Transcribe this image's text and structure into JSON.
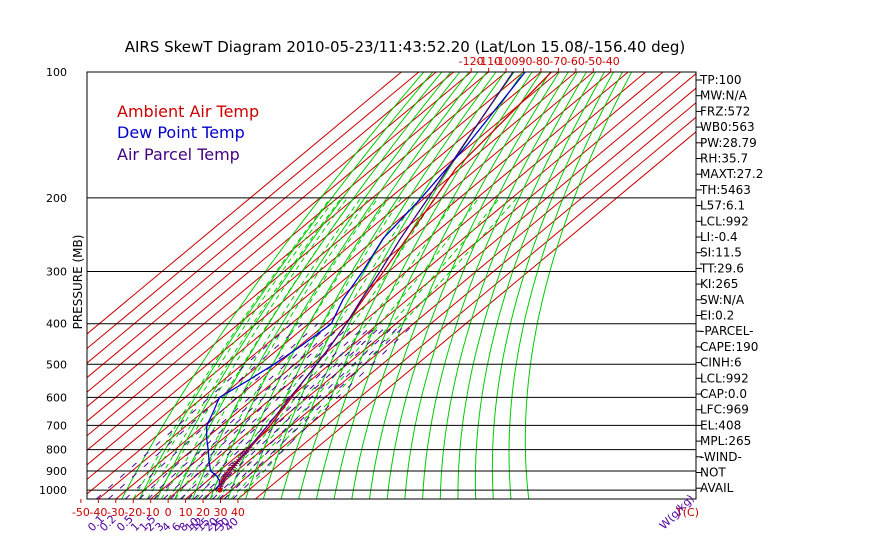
{
  "chart_data": {
    "type": "line",
    "title": "AIRS SkewT Diagram 2010-05-23/11:43:52.20 (Lat/Lon 15.08/-156.40 deg)",
    "ylabel": "PRESSURE (MB)",
    "xlabel_bottom": "T(C)",
    "mixing_ratio_unit": "W(g/kg)",
    "pressure_ticks": [
      100,
      200,
      300,
      400,
      500,
      600,
      700,
      800,
      900,
      1000
    ],
    "ylim": [
      1050,
      100
    ],
    "y_scale": "log",
    "top_temp_ticks": [
      -120,
      -110,
      -100,
      -90,
      -80,
      -70,
      -60,
      -50,
      -40
    ],
    "bottom_temp_ticks": [
      -50,
      -40,
      -30,
      -20,
      -10,
      0,
      10,
      20,
      30,
      40
    ],
    "mixing_ratio_ticks": [
      "0.1",
      "0.2",
      "0.5",
      "1",
      "1.5",
      "2",
      "3",
      "4",
      "6",
      "8",
      "10",
      "12",
      "15",
      "20",
      "25",
      "30",
      "40"
    ],
    "legend": [
      "Ambient Air Temp",
      "Dew Point Temp",
      "Air Parcel Temp"
    ],
    "legend_position": "top-left",
    "colors": {
      "ambient": "#cc0000",
      "dewpoint": "#0000cc",
      "parcel": "#400080",
      "isotherm": "#cc0000",
      "dry_adiabat": "#00cc00",
      "moist_adiabat": "#00cc00",
      "mixing_ratio": "#5000a0",
      "isobar": "#000000",
      "axis_red": "#cc0000"
    },
    "series": [
      {
        "name": "Ambient Air Temp",
        "points": [
          [
            1000,
            23.5
          ],
          [
            970,
            20.5
          ],
          [
            950,
            18
          ],
          [
            925,
            16.5
          ],
          [
            900,
            15
          ],
          [
            850,
            13.5
          ],
          [
            800,
            12
          ],
          [
            750,
            10
          ],
          [
            700,
            8
          ],
          [
            650,
            4.5
          ],
          [
            600,
            1
          ],
          [
            550,
            -3.5
          ],
          [
            500,
            -7.5
          ],
          [
            450,
            -12.5
          ],
          [
            400,
            -18.5
          ],
          [
            350,
            -25.5
          ],
          [
            300,
            -33
          ],
          [
            250,
            -42.5
          ],
          [
            200,
            -54
          ],
          [
            170,
            -62.5
          ],
          [
            150,
            -65
          ],
          [
            130,
            -68
          ],
          [
            100,
            -74
          ]
        ]
      },
      {
        "name": "Dew Point Temp",
        "points": [
          [
            1000,
            21
          ],
          [
            970,
            19.5
          ],
          [
            950,
            17
          ],
          [
            925,
            12
          ],
          [
            900,
            5
          ],
          [
            850,
            -3
          ],
          [
            800,
            -11
          ],
          [
            750,
            -20
          ],
          [
            700,
            -28.5
          ],
          [
            650,
            -34
          ],
          [
            600,
            -40.5
          ],
          [
            550,
            -36
          ],
          [
            500,
            -32
          ],
          [
            450,
            -29
          ],
          [
            400,
            -27
          ],
          [
            350,
            -37
          ],
          [
            300,
            -45
          ],
          [
            250,
            -56
          ],
          [
            200,
            -62
          ],
          [
            150,
            -72
          ],
          [
            100,
            -89
          ]
        ]
      },
      {
        "name": "Air Parcel Temp",
        "points": [
          [
            1000,
            23.5
          ],
          [
            970,
            20.5
          ],
          [
            950,
            19
          ],
          [
            900,
            16.5
          ],
          [
            850,
            14
          ],
          [
            800,
            11.5
          ],
          [
            750,
            9
          ],
          [
            700,
            6.5
          ],
          [
            650,
            3.5
          ],
          [
            600,
            0
          ],
          [
            550,
            -3.5
          ],
          [
            500,
            -7.5
          ],
          [
            450,
            -12.5
          ],
          [
            400,
            -18.5
          ],
          [
            350,
            -26.5
          ],
          [
            300,
            -35
          ],
          [
            250,
            -46
          ],
          [
            200,
            -58
          ],
          [
            150,
            -74
          ],
          [
            100,
            -96
          ]
        ]
      }
    ]
  },
  "indices": [
    "TP:100",
    "MW:N/A",
    "FRZ:572",
    "WB0:563",
    "PW:28.79",
    "RH:35.7",
    "MAXT:27.2",
    "TH:5463",
    "L57:6.1",
    "LCL:992",
    "LI:-0.4",
    "SI:11.5",
    "TT:29.6",
    "KI:265",
    "SW:N/A",
    "EI:0.2",
    "-PARCEL-",
    "CAPE:190",
    "CINH:6",
    "LCL:992",
    "CAP:0.0",
    "LFC:969",
    "EL:408",
    "MPL:265",
    "-WIND-",
    "NOT",
    "AVAIL"
  ]
}
